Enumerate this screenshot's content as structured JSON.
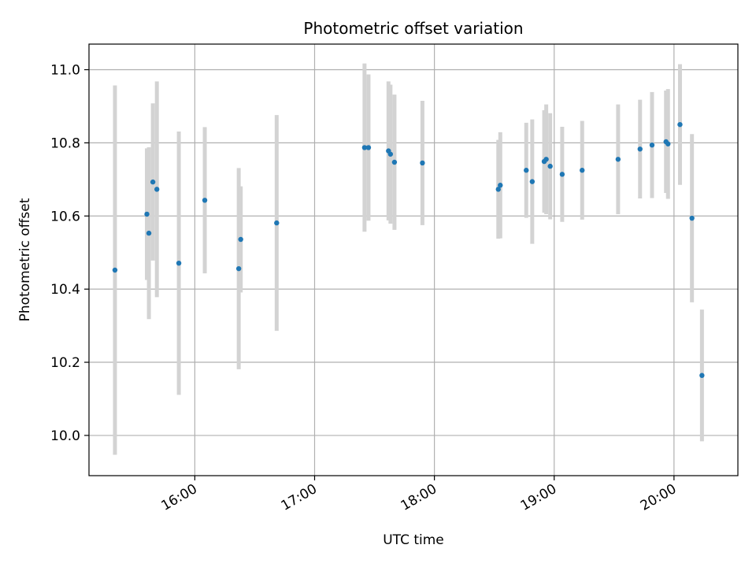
{
  "chart_data": {
    "type": "scatter",
    "title": "Photometric offset variation",
    "xlabel": "UTC time",
    "ylabel": "Photometric offset",
    "xlim": [
      "15:07",
      "20:32"
    ],
    "ylim": [
      9.89,
      11.07
    ],
    "x_ticks": [
      "16:00",
      "17:00",
      "18:00",
      "19:00",
      "20:00"
    ],
    "y_ticks": [
      10.0,
      10.2,
      10.4,
      10.6,
      10.8,
      11.0
    ],
    "grid": true,
    "colors": {
      "points": "#1f77b4",
      "errorbars": "#d3d3d3",
      "grid": "#b0b0b0"
    },
    "points": [
      {
        "x": "15:20",
        "y": 10.452,
        "err": 0.505
      },
      {
        "x": "15:36",
        "y": 10.605,
        "err": 0.18
      },
      {
        "x": "15:37",
        "y": 10.553,
        "err": 0.235
      },
      {
        "x": "15:39",
        "y": 10.693,
        "err": 0.215
      },
      {
        "x": "15:41",
        "y": 10.673,
        "err": 0.295
      },
      {
        "x": "15:52",
        "y": 10.471,
        "err": 0.36
      },
      {
        "x": "16:05",
        "y": 10.643,
        "err": 0.2
      },
      {
        "x": "16:22",
        "y": 10.456,
        "err": 0.275
      },
      {
        "x": "16:23",
        "y": 10.536,
        "err": 0.145
      },
      {
        "x": "16:41",
        "y": 10.581,
        "err": 0.295
      },
      {
        "x": "17:25",
        "y": 10.787,
        "err": 0.23
      },
      {
        "x": "17:27",
        "y": 10.787,
        "err": 0.2
      },
      {
        "x": "17:37",
        "y": 10.778,
        "err": 0.19
      },
      {
        "x": "17:38",
        "y": 10.769,
        "err": 0.19
      },
      {
        "x": "17:40",
        "y": 10.747,
        "err": 0.185
      },
      {
        "x": "17:54",
        "y": 10.745,
        "err": 0.17
      },
      {
        "x": "18:32",
        "y": 10.673,
        "err": 0.135
      },
      {
        "x": "18:33",
        "y": 10.684,
        "err": 0.145
      },
      {
        "x": "18:46",
        "y": 10.725,
        "err": 0.13
      },
      {
        "x": "18:49",
        "y": 10.694,
        "err": 0.17
      },
      {
        "x": "18:55",
        "y": 10.749,
        "err": 0.14
      },
      {
        "x": "18:56",
        "y": 10.755,
        "err": 0.15
      },
      {
        "x": "18:58",
        "y": 10.736,
        "err": 0.145
      },
      {
        "x": "19:04",
        "y": 10.714,
        "err": 0.13
      },
      {
        "x": "19:14",
        "y": 10.725,
        "err": 0.135
      },
      {
        "x": "19:32",
        "y": 10.755,
        "err": 0.15
      },
      {
        "x": "19:43",
        "y": 10.783,
        "err": 0.135
      },
      {
        "x": "19:49",
        "y": 10.794,
        "err": 0.145
      },
      {
        "x": "19:56",
        "y": 10.803,
        "err": 0.14
      },
      {
        "x": "19:57",
        "y": 10.797,
        "err": 0.15
      },
      {
        "x": "20:03",
        "y": 10.85,
        "err": 0.165
      },
      {
        "x": "20:09",
        "y": 10.594,
        "err": 0.23
      },
      {
        "x": "20:14",
        "y": 10.164,
        "err": 0.18
      }
    ]
  }
}
